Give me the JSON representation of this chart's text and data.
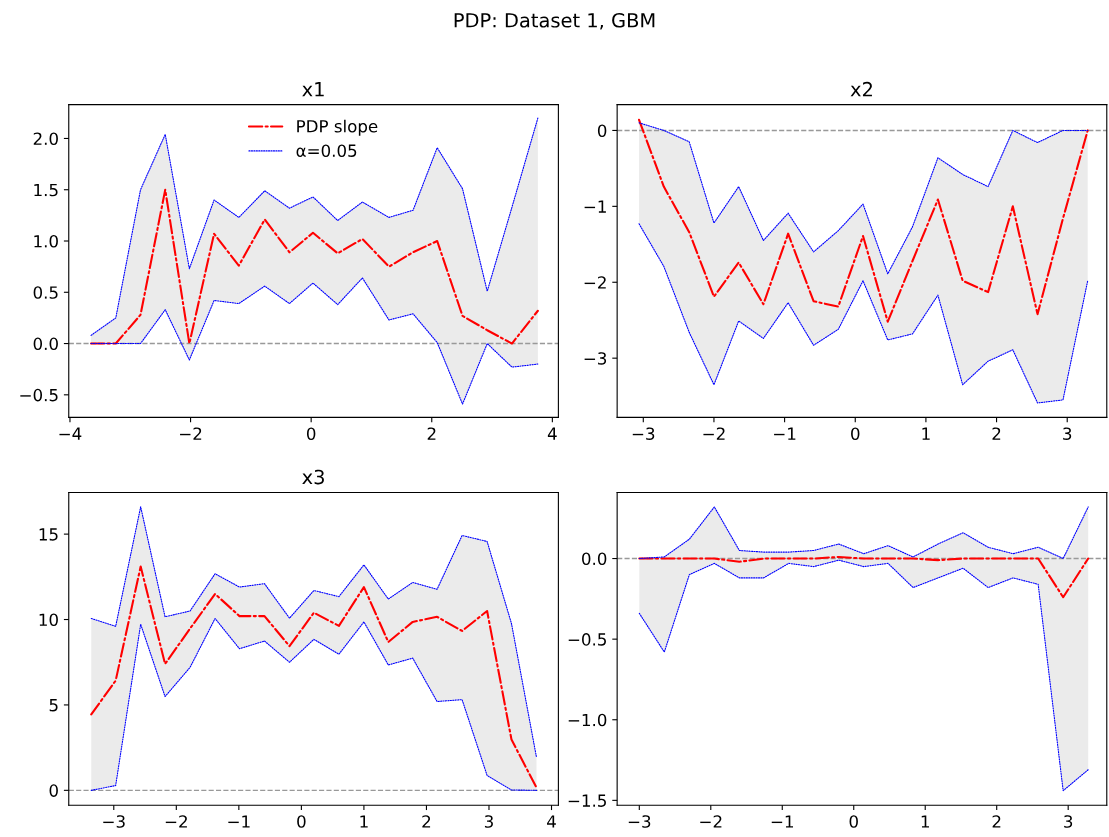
{
  "chart_data": [
    {
      "type": "line",
      "title": "x1",
      "annotations": [
        "PDP: Dataset 1, GBM"
      ],
      "legend": "top",
      "grid": false,
      "xlim": [
        -4.02,
        4.1
      ],
      "xticks": [
        -4,
        -2,
        0,
        2,
        4
      ],
      "ylim": [
        -0.72,
        2.33
      ],
      "yticks": [
        {
          "value": -0.5,
          "label": "−0.5"
        },
        {
          "value": 0,
          "label": "0.0"
        },
        {
          "value": 0.5,
          "label": "0.5"
        },
        {
          "value": 1,
          "label": "1.0"
        },
        {
          "value": 1.5,
          "label": "1.5"
        },
        {
          "value": 2,
          "label": "2.0"
        }
      ],
      "x": [
        -3.65,
        -3.24,
        -2.83,
        -2.42,
        -2.02,
        -1.61,
        -1.2,
        -0.77,
        -0.36,
        0.03,
        0.44,
        0.85,
        1.29,
        1.69,
        2.09,
        2.51,
        2.92,
        3.33,
        3.76
      ],
      "ref_lines": [
        {
          "axis": "y",
          "value": 0,
          "color": "#999999",
          "line_style": "dashed"
        }
      ],
      "series": [
        {
          "name": "PDP slope",
          "type": "line",
          "color": "#ff0000",
          "line_style": "dashdot",
          "values": [
            0,
            0,
            0.28,
            1.5,
            0,
            1.07,
            0.76,
            1.21,
            0.89,
            1.08,
            0.88,
            1.02,
            0.75,
            0.89,
            1.0,
            0.27,
            0.13,
            0,
            0.32
          ],
          "lower": [
            0,
            0,
            0,
            0.33,
            -0.16,
            0.42,
            0.39,
            0.56,
            0.39,
            0.59,
            0.38,
            0.64,
            0.23,
            0.29,
            0.01,
            -0.59,
            0,
            -0.23,
            -0.2
          ],
          "upper": [
            0.08,
            0.25,
            1.5,
            2.04,
            0.73,
            1.4,
            1.23,
            1.49,
            1.32,
            1.43,
            1.2,
            1.38,
            1.23,
            1.3,
            1.91,
            1.51,
            0.51,
            1.33,
            2.2
          ]
        },
        {
          "name": "α=0.05",
          "color": "#0000ff",
          "line_style": "dotted",
          "values": [
            0.08,
            0.25,
            1.5,
            2.04,
            0.73,
            1.4,
            1.23,
            1.49,
            1.32,
            1.43,
            1.2,
            1.38,
            1.23,
            1.3,
            1.91,
            1.51,
            0.51,
            1.33,
            2.2
          ]
        },
        {
          "color": "#0000ff",
          "line_style": "dotted",
          "values": [
            0,
            0,
            0,
            0.33,
            -0.16,
            0.42,
            0.39,
            0.56,
            0.39,
            0.59,
            0.38,
            0.64,
            0.23,
            0.29,
            0.01,
            -0.59,
            0,
            -0.23,
            -0.2
          ]
        }
      ]
    },
    {
      "type": "line",
      "title": "x2",
      "grid": false,
      "xlim": [
        -3.37,
        3.56
      ],
      "xticks": [
        -3,
        -2,
        -1,
        0,
        1,
        2,
        3
      ],
      "ylim": [
        -3.78,
        0.34
      ],
      "yticks": [
        -3,
        -2,
        -1,
        0
      ],
      "x": [
        -3.06,
        -2.71,
        -2.35,
        -2.0,
        -1.65,
        -1.3,
        -0.95,
        -0.59,
        -0.24,
        0.11,
        0.46,
        0.81,
        1.17,
        1.52,
        1.88,
        2.23,
        2.58,
        2.94,
        3.29
      ],
      "ref_lines": [
        {
          "axis": "y",
          "value": 0,
          "color": "#999999",
          "line_style": "dashed"
        }
      ],
      "series": [
        {
          "type": "line",
          "color": "#ff0000",
          "line_style": "dashdot",
          "values": [
            0.14,
            -0.74,
            -1.34,
            -2.19,
            -1.74,
            -2.29,
            -1.36,
            -2.25,
            -2.32,
            -1.39,
            -2.52,
            -1.72,
            -0.91,
            -1.98,
            -2.13,
            -1.0,
            -2.42,
            -1.16,
            0
          ],
          "lower": [
            -1.23,
            -1.79,
            -2.66,
            -3.35,
            -2.51,
            -2.74,
            -2.27,
            -2.83,
            -2.62,
            -1.98,
            -2.76,
            -2.68,
            -2.17,
            -3.35,
            -3.04,
            -2.89,
            -3.59,
            -3.55,
            -1.98
          ],
          "upper": [
            0.1,
            0,
            -0.15,
            -1.22,
            -0.74,
            -1.45,
            -1.09,
            -1.6,
            -1.32,
            -0.97,
            -1.89,
            -1.27,
            -0.36,
            -0.58,
            -0.74,
            0,
            -0.16,
            0,
            0
          ]
        },
        {
          "color": "#0000ff",
          "line_style": "dotted",
          "values": [
            0.1,
            0,
            -0.15,
            -1.22,
            -0.74,
            -1.45,
            -1.09,
            -1.6,
            -1.32,
            -0.97,
            -1.89,
            -1.27,
            -0.36,
            -0.58,
            -0.74,
            0,
            -0.16,
            0,
            0
          ]
        },
        {
          "color": "#0000ff",
          "line_style": "dotted",
          "values": [
            -1.23,
            -1.79,
            -2.66,
            -3.35,
            -2.51,
            -2.74,
            -2.27,
            -2.83,
            -2.62,
            -1.98,
            -2.76,
            -2.68,
            -2.17,
            -3.35,
            -3.04,
            -2.89,
            -3.59,
            -3.55,
            -1.98
          ]
        }
      ]
    },
    {
      "type": "line",
      "title": "x3",
      "grid": false,
      "xlim": [
        -3.72,
        4.11
      ],
      "xticks": [
        -3,
        -2,
        -1,
        0,
        1,
        2,
        3,
        4
      ],
      "ylim": [
        -0.87,
        17.44
      ],
      "yticks": [
        0,
        5,
        10,
        15
      ],
      "x": [
        -3.36,
        -2.97,
        -2.57,
        -2.18,
        -1.78,
        -1.38,
        -0.99,
        -0.59,
        -0.19,
        0.2,
        0.6,
        1.0,
        1.39,
        1.78,
        2.17,
        2.57,
        2.97,
        3.36,
        3.76
      ],
      "ref_lines": [
        {
          "axis": "y",
          "value": 0,
          "color": "#999999",
          "line_style": "dashed"
        }
      ],
      "series": [
        {
          "type": "line",
          "color": "#ff0000",
          "line_style": "dashdot",
          "values": [
            4.45,
            6.42,
            13.1,
            7.4,
            9.47,
            11.5,
            10.2,
            10.2,
            8.44,
            10.4,
            9.63,
            11.9,
            8.68,
            9.86,
            10.16,
            9.33,
            10.5,
            2.97,
            0.16
          ],
          "lower": [
            0,
            0.28,
            9.72,
            5.49,
            7.2,
            10.06,
            8.29,
            8.74,
            7.5,
            8.84,
            7.97,
            9.86,
            7.34,
            7.74,
            5.2,
            5.31,
            0.87,
            0.02,
            0
          ],
          "upper": [
            10.06,
            9.6,
            16.6,
            10.16,
            10.5,
            12.68,
            11.9,
            12.1,
            10.08,
            11.7,
            11.34,
            13.2,
            11.2,
            12.17,
            11.77,
            14.92,
            14.57,
            9.76,
            1.93
          ]
        },
        {
          "color": "#0000ff",
          "line_style": "dotted",
          "values": [
            10.06,
            9.6,
            16.6,
            10.16,
            10.5,
            12.68,
            11.9,
            12.1,
            10.08,
            11.7,
            11.34,
            13.2,
            11.2,
            12.17,
            11.77,
            14.92,
            14.57,
            9.76,
            1.93
          ]
        },
        {
          "color": "#0000ff",
          "line_style": "dotted",
          "values": [
            0,
            0.28,
            9.72,
            5.49,
            7.2,
            10.06,
            8.29,
            8.74,
            7.5,
            8.84,
            7.97,
            9.86,
            7.34,
            7.74,
            5.2,
            5.31,
            0.87,
            0.02,
            0
          ]
        }
      ]
    },
    {
      "type": "line",
      "grid": false,
      "xlim": [
        -3.31,
        3.54
      ],
      "xticks": [
        -3,
        -2,
        -1,
        0,
        1,
        2,
        3
      ],
      "ylim": [
        -1.53,
        0.41
      ],
      "yticks": [
        {
          "value": -1.5,
          "label": "−1.5"
        },
        {
          "value": -1,
          "label": "−1.0"
        },
        {
          "value": -0.5,
          "label": "−0.5"
        },
        {
          "value": 0,
          "label": "0.0"
        }
      ],
      "x": [
        -3.0,
        -2.65,
        -2.3,
        -1.95,
        -1.6,
        -1.26,
        -0.91,
        -0.56,
        -0.21,
        0.14,
        0.48,
        0.83,
        1.18,
        1.53,
        1.88,
        2.23,
        2.58,
        2.93,
        3.28
      ],
      "ref_lines": [
        {
          "axis": "y",
          "value": 0,
          "color": "#999999",
          "line_style": "dashed"
        }
      ],
      "series": [
        {
          "type": "line",
          "color": "#ff0000",
          "line_style": "dashdot",
          "values": [
            0,
            0,
            0,
            0,
            -0.02,
            0,
            0,
            0,
            0.01,
            0,
            0,
            0,
            -0.01,
            0,
            0,
            0,
            0,
            -0.24,
            0
          ],
          "lower": [
            -0.34,
            -0.58,
            -0.1,
            -0.03,
            -0.12,
            -0.12,
            -0.03,
            -0.05,
            -0.01,
            -0.05,
            -0.03,
            -0.18,
            -0.12,
            -0.06,
            -0.18,
            -0.12,
            -0.16,
            -1.44,
            -1.31
          ],
          "upper": [
            0,
            0.01,
            0.12,
            0.32,
            0.05,
            0.04,
            0.04,
            0.05,
            0.09,
            0.03,
            0.08,
            0.01,
            0.09,
            0.16,
            0.07,
            0.03,
            0.07,
            0,
            0.32
          ]
        },
        {
          "color": "#0000ff",
          "line_style": "dotted",
          "values": [
            0,
            0.01,
            0.12,
            0.32,
            0.05,
            0.04,
            0.04,
            0.05,
            0.09,
            0.03,
            0.08,
            0.01,
            0.09,
            0.16,
            0.07,
            0.03,
            0.07,
            0,
            0.32
          ]
        },
        {
          "color": "#0000ff",
          "line_style": "dotted",
          "values": [
            -0.34,
            -0.58,
            -0.1,
            -0.03,
            -0.12,
            -0.12,
            -0.03,
            -0.05,
            -0.01,
            -0.05,
            -0.03,
            -0.18,
            -0.12,
            -0.06,
            -0.18,
            -0.12,
            -0.16,
            -1.44,
            -1.31
          ]
        }
      ]
    }
  ]
}
